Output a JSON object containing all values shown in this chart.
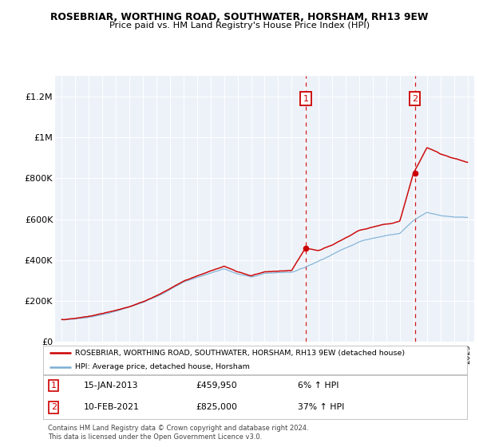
{
  "title1": "ROSEBRIAR, WORTHING ROAD, SOUTHWATER, HORSHAM, RH13 9EW",
  "title2": "Price paid vs. HM Land Registry's House Price Index (HPI)",
  "legend_line1": "ROSEBRIAR, WORTHING ROAD, SOUTHWATER, HORSHAM, RH13 9EW (detached house)",
  "legend_line2": "HPI: Average price, detached house, Horsham",
  "footnote1": "Contains HM Land Registry data © Crown copyright and database right 2024.",
  "footnote2": "This data is licensed under the Open Government Licence v3.0.",
  "sale1_label": "1",
  "sale1_date": "15-JAN-2013",
  "sale1_price": "£459,950",
  "sale1_hpi": "6% ↑ HPI",
  "sale1_x": 2013.04,
  "sale1_y": 459950,
  "sale2_label": "2",
  "sale2_date": "10-FEB-2021",
  "sale2_price": "£825,000",
  "sale2_hpi": "37% ↑ HPI",
  "sale2_x": 2021.12,
  "sale2_y": 825000,
  "ylim": [
    0,
    1300000
  ],
  "yticks": [
    0,
    200000,
    400000,
    600000,
    800000,
    1000000,
    1200000
  ],
  "ytick_labels": [
    "£0",
    "£200K",
    "£400K",
    "£600K",
    "£800K",
    "£1M",
    "£1.2M"
  ],
  "xlim": [
    1994.5,
    2025.5
  ],
  "bg_color": "#edf2f9",
  "red_color": "#cc0000",
  "blue_color": "#7bafd4",
  "dashed_color": "#cc0000",
  "white": "#ffffff"
}
